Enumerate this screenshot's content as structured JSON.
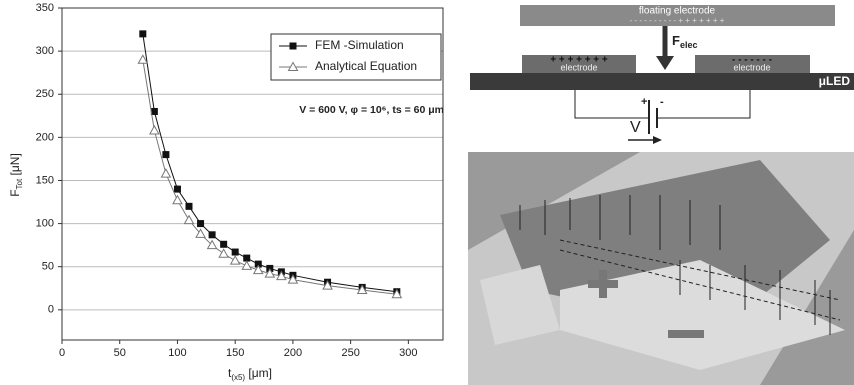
{
  "chart_data": {
    "type": "line",
    "x": [
      70,
      80,
      90,
      100,
      110,
      120,
      130,
      140,
      150,
      160,
      170,
      180,
      190,
      200,
      230,
      260,
      290
    ],
    "series": [
      {
        "name": "FEM -Simulation",
        "color": "#111111",
        "marker": "square",
        "values": [
          320,
          230,
          180,
          140,
          120,
          100,
          87,
          76,
          67,
          60,
          53,
          48,
          44,
          40,
          32,
          26,
          21
        ]
      },
      {
        "name": "Analytical Equation",
        "color": "#777777",
        "marker": "triangle",
        "values": [
          290,
          208,
          158,
          127,
          104,
          88,
          75,
          65,
          57,
          51,
          46,
          42,
          39,
          35,
          28,
          23,
          18
        ]
      }
    ],
    "xlim": [
      0,
      330
    ],
    "xticks": [
      0,
      50,
      100,
      150,
      200,
      250,
      300
    ],
    "ylim": [
      -35,
      350
    ],
    "yticks": [
      0,
      50,
      100,
      150,
      200,
      250,
      300,
      350
    ],
    "grid": true,
    "legend": "upper right",
    "xlabel": "t",
    "xlabel_sub": "(x5)",
    "xlabel_unit": " [μm]",
    "ylabel": "F",
    "ylabel_sub": "Tot",
    "ylabel_unit": " [μN]",
    "annotation": "V = 600 V, φ = 10⁶, ts = 60 μm"
  },
  "diagram": {
    "floating_electrode": "floating electrode",
    "force": "F",
    "force_sub": "elec",
    "left_electrode": "electrode",
    "right_electrode": "electrode",
    "left_charges": "+ + + + + + +",
    "right_charges": "- - - - - - -",
    "floating_charges": "-  -  -  -  -  -  -  -  -  -  +  +  +  +  +  +  +",
    "led": "μLED",
    "battery_plus": "+",
    "battery_minus": "-",
    "voltage": "V"
  }
}
